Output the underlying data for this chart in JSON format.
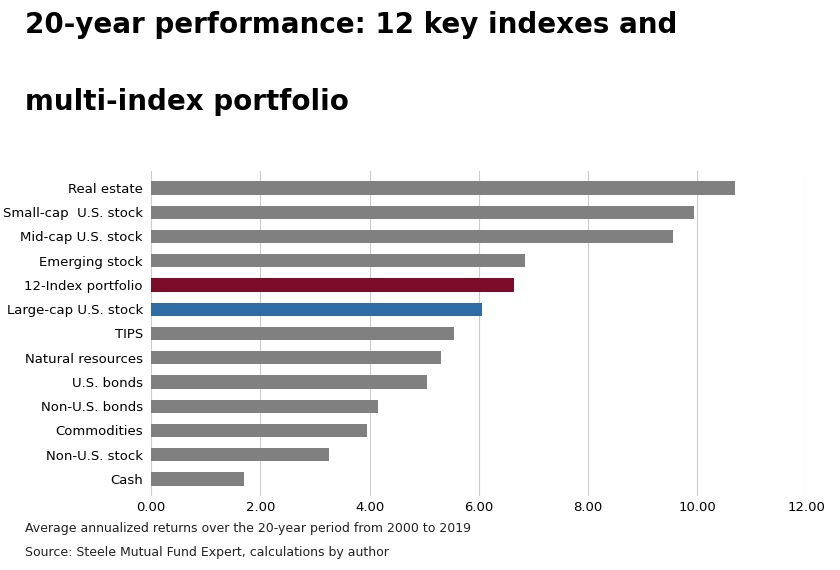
{
  "title_line1": "20-year performance: 12 key indexes and",
  "title_line2": "multi-index portfolio",
  "categories": [
    "Real estate",
    "Small-cap  U.S. stock",
    "Mid-cap U.S. stock",
    "Emerging stock",
    "12-Index portfolio",
    "Large-cap U.S. stock",
    "TIPS",
    "Natural resources",
    "U.S. bonds",
    "Non-U.S. bonds",
    "Commodities",
    "Non-U.S. stock",
    "Cash"
  ],
  "values": [
    10.7,
    9.95,
    9.55,
    6.85,
    6.65,
    6.05,
    5.55,
    5.3,
    5.05,
    4.15,
    3.95,
    3.25,
    1.7
  ],
  "colors": [
    "#808080",
    "#808080",
    "#808080",
    "#808080",
    "#7b0d2a",
    "#2e6da4",
    "#808080",
    "#808080",
    "#808080",
    "#808080",
    "#808080",
    "#808080",
    "#808080"
  ],
  "xlim": [
    0,
    12
  ],
  "xticks": [
    0.0,
    2.0,
    4.0,
    6.0,
    8.0,
    10.0,
    12.0
  ],
  "xtick_labels": [
    "0.00",
    "2.00",
    "4.00",
    "6.00",
    "8.00",
    "10.00",
    "12.00"
  ],
  "footnote1": "Average annualized returns over the 20-year period from 2000 to 2019",
  "footnote2": "Source: Steele Mutual Fund Expert, calculations by author",
  "background_color": "#ffffff",
  "bar_height": 0.55,
  "title_fontsize": 20,
  "label_fontsize": 9.5,
  "tick_fontsize": 9.5,
  "footnote_fontsize": 9.0,
  "grid_color": "#cccccc",
  "text_color": "#000000",
  "footnote_color": "#222222"
}
